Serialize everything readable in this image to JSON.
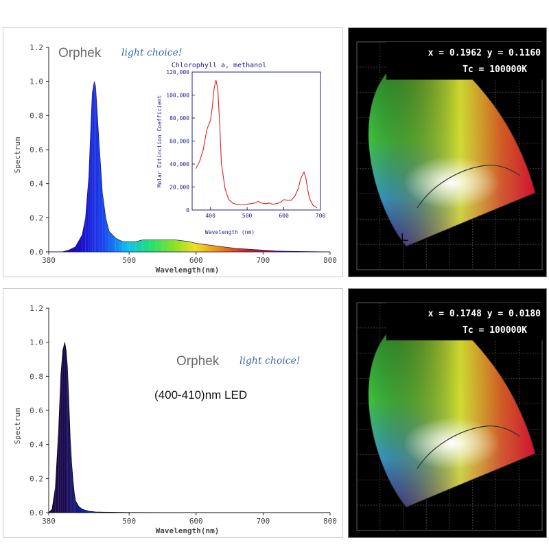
{
  "colors": {
    "curve_blue": "#1f31c8",
    "inset_red": "#e02020",
    "inset_text": "#22228a",
    "logo_gray": "#6a6a6a",
    "logo_script": "#3a67a8"
  },
  "top": {
    "logo_word": "Orphek",
    "logo_tag": "light choice!",
    "chart_data": {
      "type": "area",
      "xlabel": "Wavelength(nm)",
      "ylabel": "Spectrum",
      "xlim": [
        380,
        800
      ],
      "ylim": [
        0,
        1.2
      ],
      "x_ticks": [
        "380",
        "500",
        "600",
        "700",
        "800"
      ],
      "y_ticks": [
        "0.0",
        "0.2",
        "0.4",
        "0.6",
        "0.8",
        "1.0",
        "1.2"
      ],
      "series": [
        {
          "x": [
            380,
            400,
            410,
            420,
            430,
            435,
            440,
            443,
            445,
            448,
            450,
            455,
            460,
            465,
            470,
            480,
            490,
            500,
            510,
            520,
            530,
            540,
            550,
            560,
            570,
            580,
            590,
            600,
            610,
            620,
            640,
            660,
            680,
            700,
            720,
            740,
            760,
            780,
            800
          ],
          "values": [
            0,
            0,
            0.01,
            0.03,
            0.1,
            0.2,
            0.45,
            0.75,
            0.93,
            1.0,
            0.97,
            0.65,
            0.35,
            0.2,
            0.12,
            0.08,
            0.06,
            0.06,
            0.06,
            0.07,
            0.07,
            0.07,
            0.07,
            0.07,
            0.07,
            0.065,
            0.06,
            0.05,
            0.045,
            0.04,
            0.03,
            0.02,
            0.015,
            0.01,
            0.005,
            0.003,
            0.002,
            0.001,
            0
          ]
        }
      ]
    },
    "inset_data": {
      "type": "line",
      "title": "Chlorophyll a, methanol",
      "xlabel": "Wavelength (nm)",
      "ylabel": "Molar Extinction Coefficient",
      "xlim": [
        350,
        700
      ],
      "ylim": [
        0,
        120000
      ],
      "x_ticks": [
        "400",
        "500",
        "600",
        "700"
      ],
      "y_ticks": [
        "0",
        "20,000",
        "40,000",
        "60,000",
        "80,000",
        "100,000",
        "120,000"
      ],
      "series": [
        {
          "x": [
            360,
            370,
            380,
            390,
            400,
            405,
            410,
            415,
            420,
            425,
            430,
            440,
            450,
            460,
            470,
            480,
            490,
            500,
            510,
            520,
            530,
            540,
            550,
            560,
            570,
            580,
            590,
            600,
            610,
            620,
            630,
            640,
            645,
            650,
            655,
            660,
            665,
            670,
            680,
            690
          ],
          "values": [
            36000,
            42000,
            52000,
            70000,
            78000,
            90000,
            106000,
            113000,
            105000,
            75000,
            40000,
            18000,
            9000,
            6000,
            5000,
            4500,
            4500,
            5000,
            5500,
            6000,
            7500,
            6000,
            5500,
            6000,
            5000,
            5500,
            6500,
            9000,
            8500,
            8500,
            12000,
            19000,
            26000,
            30000,
            33000,
            28000,
            18000,
            10000,
            4000,
            2000
          ]
        }
      ]
    },
    "cie": {
      "coords": "x = 0.1962 y = 0.1160",
      "tc": "Tc = 100000K"
    }
  },
  "bottom": {
    "logo_word": "Orphek",
    "logo_tag": "light choice!",
    "led_label": "(400-410)nm LED",
    "chart_data": {
      "type": "area",
      "xlabel": "Wavelength(nm)",
      "ylabel": "Spectrum",
      "xlim": [
        380,
        800
      ],
      "ylim": [
        0,
        1.2
      ],
      "x_ticks": [
        "380",
        "500",
        "600",
        "700",
        "800"
      ],
      "y_ticks": [
        "0.0",
        "0.2",
        "0.4",
        "0.6",
        "0.8",
        "1.0",
        "1.2"
      ],
      "series": [
        {
          "x": [
            380,
            385,
            390,
            395,
            398,
            401,
            404,
            406,
            408,
            410,
            412,
            414,
            416,
            418,
            420,
            425,
            430,
            440,
            450,
            460,
            480,
            500,
            550,
            600,
            700,
            800
          ],
          "values": [
            0,
            0.02,
            0.15,
            0.5,
            0.8,
            0.95,
            1.0,
            0.95,
            0.85,
            0.65,
            0.45,
            0.3,
            0.2,
            0.12,
            0.07,
            0.035,
            0.02,
            0.008,
            0.004,
            0.003,
            0.002,
            0.001,
            0.0005,
            0,
            0,
            0
          ]
        }
      ]
    },
    "cie": {
      "coords": "x = 0.1748 y = 0.0180",
      "tc": "Tc = 100000K"
    }
  }
}
